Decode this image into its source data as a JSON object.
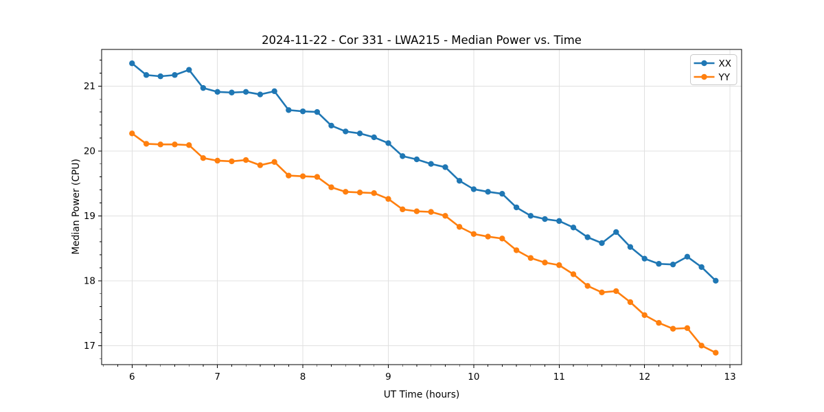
{
  "chart_data": {
    "type": "line",
    "title": "2024-11-22 - Cor 331 - LWA215 - Median Power vs. Time",
    "xlabel": "UT Time (hours)",
    "ylabel": "Median Power (CPU)",
    "xlim": [
      5.644,
      13.136
    ],
    "ylim": [
      16.707,
      21.564
    ],
    "xticks": [
      6,
      7,
      8,
      9,
      10,
      11,
      12,
      13
    ],
    "yticks": [
      17,
      18,
      19,
      20,
      21
    ],
    "x_minor_per_unit": 6,
    "y_minor_per_unit": 5,
    "grid": true,
    "legend_position": "upper right",
    "marker": "circle",
    "x": [
      6.0,
      6.167,
      6.333,
      6.5,
      6.667,
      6.833,
      7.0,
      7.167,
      7.333,
      7.5,
      7.667,
      7.833,
      8.0,
      8.167,
      8.333,
      8.5,
      8.667,
      8.833,
      9.0,
      9.167,
      9.333,
      9.5,
      9.667,
      9.833,
      10.0,
      10.167,
      10.333,
      10.5,
      10.667,
      10.833,
      11.0,
      11.167,
      11.333,
      11.5,
      11.667,
      11.833,
      12.0,
      12.167,
      12.333,
      12.5,
      12.667,
      12.833
    ],
    "series": [
      {
        "name": "XX",
        "color": "#1f77b4",
        "values": [
          21.35,
          21.17,
          21.15,
          21.17,
          21.25,
          20.97,
          20.91,
          20.9,
          20.91,
          20.87,
          20.92,
          20.63,
          20.61,
          20.6,
          20.39,
          20.3,
          20.27,
          20.21,
          20.12,
          19.92,
          19.87,
          19.8,
          19.75,
          19.54,
          19.41,
          19.37,
          19.34,
          19.13,
          19.0,
          18.95,
          18.92,
          18.82,
          18.67,
          18.58,
          18.75,
          18.52,
          18.34,
          18.26,
          18.25,
          18.37,
          18.21,
          18.0
        ]
      },
      {
        "name": "YY",
        "color": "#ff7f0e",
        "values": [
          20.27,
          20.11,
          20.1,
          20.1,
          20.09,
          19.89,
          19.85,
          19.84,
          19.86,
          19.78,
          19.83,
          19.62,
          19.61,
          19.6,
          19.44,
          19.37,
          19.36,
          19.35,
          19.26,
          19.1,
          19.07,
          19.06,
          19.0,
          18.83,
          18.72,
          18.68,
          18.65,
          18.47,
          18.35,
          18.28,
          18.24,
          18.1,
          17.92,
          17.82,
          17.84,
          17.67,
          17.47,
          17.35,
          17.26,
          17.27,
          17.0,
          16.89
        ]
      }
    ],
    "style": {
      "grid_color": "#e0e0e0",
      "spine_color": "#000000",
      "tick_color": "#000000",
      "legend_edge_color": "#c8c8c8",
      "legend_face_color": "#ffffff"
    }
  }
}
